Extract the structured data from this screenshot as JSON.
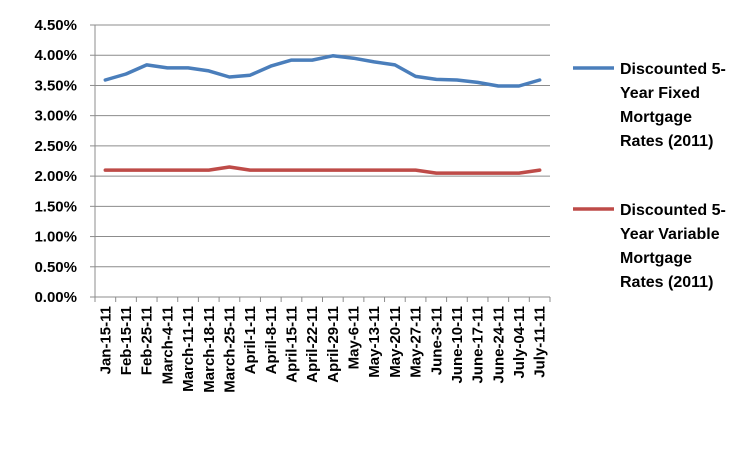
{
  "chart_data": {
    "type": "line",
    "categories": [
      "Jan-15-11",
      "Feb-15-11",
      "Feb-25-11",
      "March-4-11",
      "March-11-11",
      "March-18-11",
      "March-25-11",
      "April-1-11",
      "April-8-11",
      "April-15-11",
      "April-22-11",
      "April-29-11",
      "May-6-11",
      "May-13-11",
      "May-20-11",
      "May-27-11",
      "June-3-11",
      "June-10-11",
      "June-17-11",
      "June-24-11",
      "July-04-11",
      "July-11-11"
    ],
    "series": [
      {
        "name": "Discounted 5-Year Fixed Mortgage Rates (2011)",
        "color": "#4a7ebb",
        "values": [
          3.59,
          3.69,
          3.84,
          3.79,
          3.79,
          3.74,
          3.64,
          3.67,
          3.82,
          3.92,
          3.92,
          3.99,
          3.95,
          3.89,
          3.84,
          3.65,
          3.6,
          3.59,
          3.55,
          3.49,
          3.49,
          3.59
        ]
      },
      {
        "name": "Discounted 5-Year Variable Mortgage Rates (2011)",
        "color": "#be4b48",
        "values": [
          2.1,
          2.1,
          2.1,
          2.1,
          2.1,
          2.1,
          2.15,
          2.1,
          2.1,
          2.1,
          2.1,
          2.1,
          2.1,
          2.1,
          2.1,
          2.1,
          2.05,
          2.05,
          2.05,
          2.05,
          2.05,
          2.1
        ]
      }
    ],
    "y_ticks": [
      "0.00%",
      "0.50%",
      "1.00%",
      "1.50%",
      "2.00%",
      "2.50%",
      "3.00%",
      "3.50%",
      "4.00%",
      "4.50%"
    ],
    "ylim": [
      0,
      4.5
    ],
    "unit": "%",
    "grid": true,
    "legend": {
      "position": "right",
      "entries": [
        {
          "lines": [
            "Discounted 5-",
            "Year Fixed",
            "Mortgage",
            "Rates (2011)"
          ]
        },
        {
          "lines": [
            "Discounted 5-",
            "Year Variable",
            "Mortgage",
            "Rates (2011)"
          ]
        }
      ]
    }
  }
}
